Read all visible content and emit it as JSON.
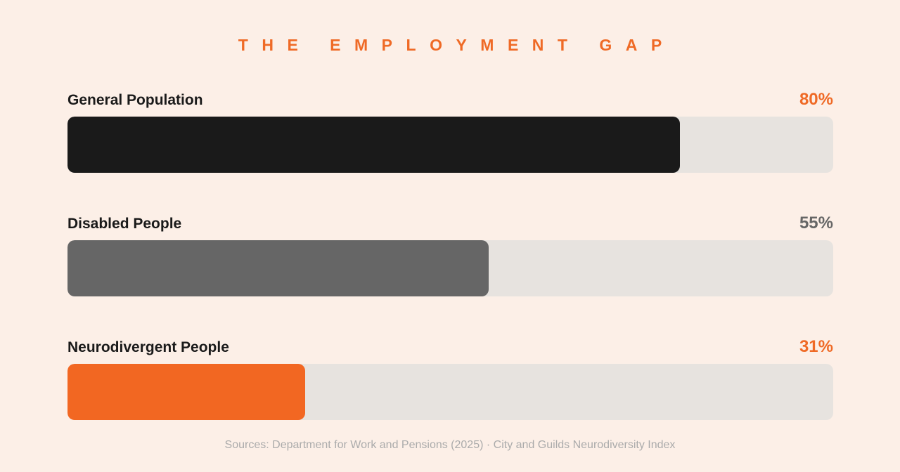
{
  "title": "THE EMPLOYMENT GAP",
  "source": "Sources: Department for Work and Pensions (2025) · City and Guilds Neurodiversity Index",
  "colors": {
    "background": "#fcefe7",
    "accent": "#ef6a26",
    "track": "#e7e3df",
    "label": "#1a1a1a"
  },
  "chart_data": {
    "type": "bar",
    "orientation": "horizontal",
    "title": "THE EMPLOYMENT GAP",
    "categories": [
      "General Population",
      "Disabled People",
      "Neurodivergent People"
    ],
    "values": [
      80,
      55,
      31
    ],
    "value_labels": [
      "80%",
      "55%",
      "31%"
    ],
    "bar_colors": [
      "#1a1a1a",
      "#666666",
      "#f26722"
    ],
    "value_label_colors": [
      "#ef6a26",
      "#666666",
      "#ef6a26"
    ],
    "xlim": [
      0,
      100
    ],
    "grid": false,
    "legend": "none"
  }
}
